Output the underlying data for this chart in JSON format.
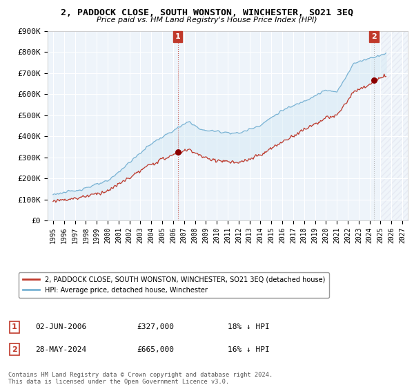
{
  "title": "2, PADDOCK CLOSE, SOUTH WONSTON, WINCHESTER, SO21 3EQ",
  "subtitle": "Price paid vs. HM Land Registry's House Price Index (HPI)",
  "ylim": [
    0,
    900000
  ],
  "yticks": [
    0,
    100000,
    200000,
    300000,
    400000,
    500000,
    600000,
    700000,
    800000,
    900000
  ],
  "ytick_labels": [
    "£0",
    "£100K",
    "£200K",
    "£300K",
    "£400K",
    "£500K",
    "£600K",
    "£700K",
    "£800K",
    "£900K"
  ],
  "hpi_color": "#7ab3d4",
  "hpi_fill_color": "#d6eaf5",
  "price_color": "#c0392b",
  "marker_dot_color": "#8b0000",
  "marker_box_color": "#c0392b",
  "marker_box_outline": "#c0392b",
  "legend_label_price": "2, PADDOCK CLOSE, SOUTH WONSTON, WINCHESTER, SO21 3EQ (detached house)",
  "legend_label_hpi": "HPI: Average price, detached house, Winchester",
  "annotation1_label": "1",
  "annotation1_date": "02-JUN-2006",
  "annotation1_price": "£327,000",
  "annotation1_hpi": "18% ↓ HPI",
  "annotation2_label": "2",
  "annotation2_date": "28-MAY-2024",
  "annotation2_price": "£665,000",
  "annotation2_hpi": "16% ↓ HPI",
  "footnote": "Contains HM Land Registry data © Crown copyright and database right 2024.\nThis data is licensed under the Open Government Licence v3.0.",
  "xlim_start": 1994.5,
  "xlim_end": 2027.5,
  "xtick_years": [
    1995,
    1996,
    1997,
    1998,
    1999,
    2000,
    2001,
    2002,
    2003,
    2004,
    2005,
    2006,
    2007,
    2008,
    2009,
    2010,
    2011,
    2012,
    2013,
    2014,
    2015,
    2016,
    2017,
    2018,
    2019,
    2020,
    2021,
    2022,
    2023,
    2024,
    2025,
    2026,
    2027
  ],
  "marker1_x": 2006.42,
  "marker1_y": 327000,
  "marker2_x": 2024.4,
  "marker2_y": 665000,
  "background_color": "#ffffff",
  "plot_bg_color": "#eef4fa",
  "grid_color": "#ffffff",
  "hatch_start": 2025.0
}
